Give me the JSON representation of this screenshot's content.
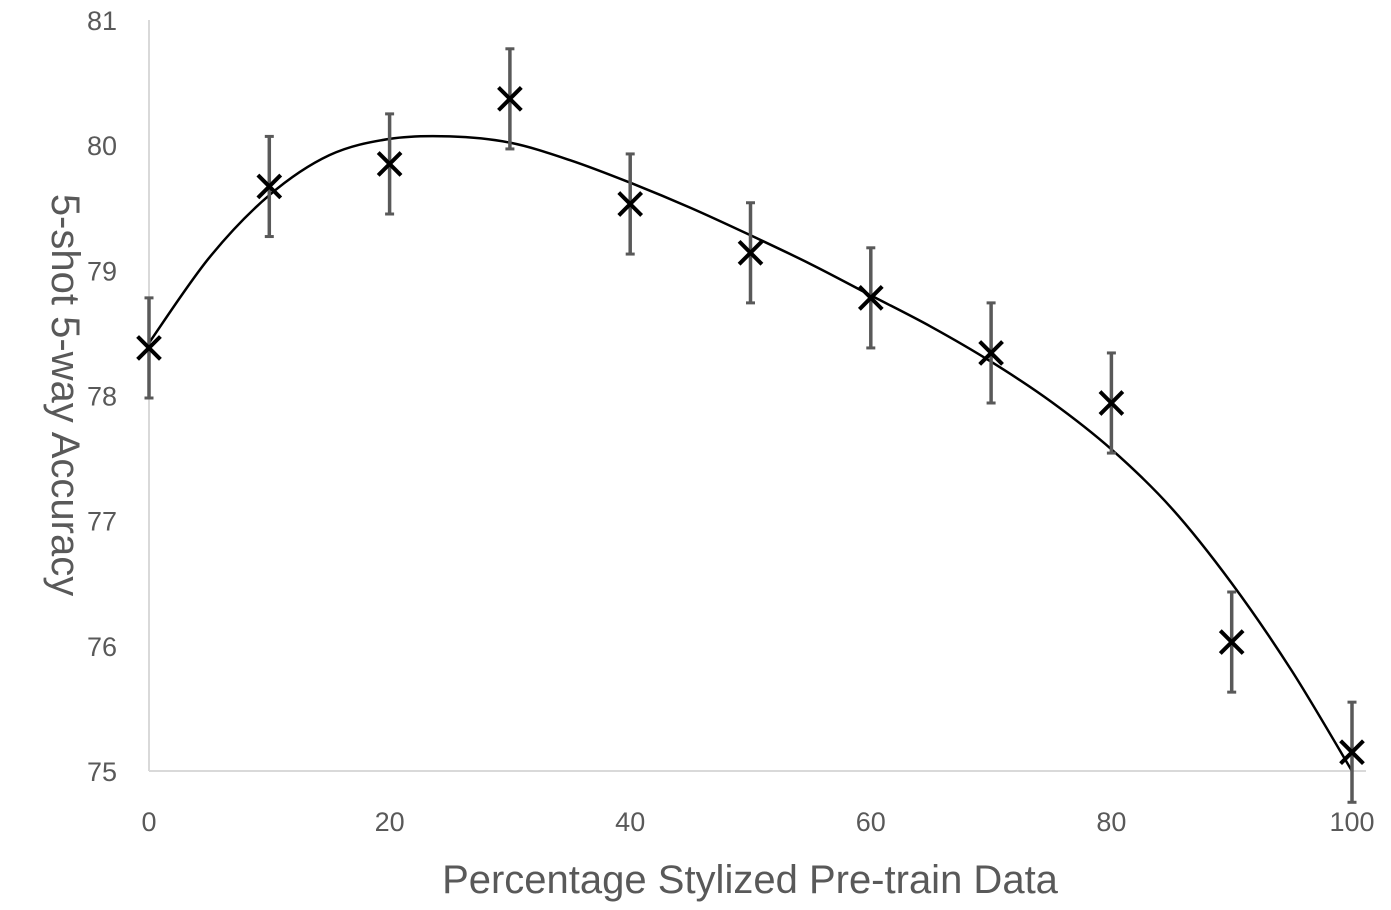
{
  "chart_data": {
    "type": "scatter",
    "title": "",
    "xlabel": "Percentage Stylized Pre-train Data",
    "ylabel": "5-shot 5-way Accuracy",
    "xlim": [
      0,
      100
    ],
    "ylim": [
      75,
      81
    ],
    "x_ticks": [
      "0",
      "20",
      "40",
      "60",
      "80",
      "100"
    ],
    "y_ticks": [
      "75",
      "76",
      "77",
      "78",
      "79",
      "80",
      "81"
    ],
    "grid": false,
    "legend": "none",
    "series": [
      {
        "marker": "x",
        "color": "#000000",
        "x": [
          0,
          10,
          20,
          30,
          40,
          50,
          60,
          70,
          80,
          90,
          100
        ],
        "y": [
          78.38,
          79.67,
          79.85,
          80.37,
          79.53,
          79.14,
          78.78,
          78.34,
          77.94,
          76.03,
          75.15
        ],
        "error": [
          0.4,
          0.4,
          0.4,
          0.4,
          0.4,
          0.4,
          0.4,
          0.4,
          0.4,
          0.4,
          0.4
        ]
      }
    ],
    "trendline": {
      "type": "polynomial",
      "color": "#000000",
      "points": [
        [
          0,
          78.42
        ],
        [
          5,
          79.1
        ],
        [
          10,
          79.6
        ],
        [
          15,
          79.92
        ],
        [
          20,
          80.05
        ],
        [
          25,
          80.07
        ],
        [
          30,
          80.02
        ],
        [
          35,
          79.88
        ],
        [
          40,
          79.7
        ],
        [
          45,
          79.5
        ],
        [
          50,
          79.28
        ],
        [
          55,
          79.05
        ],
        [
          60,
          78.8
        ],
        [
          65,
          78.55
        ],
        [
          70,
          78.27
        ],
        [
          75,
          77.95
        ],
        [
          80,
          77.57
        ],
        [
          85,
          77.1
        ],
        [
          90,
          76.5
        ],
        [
          95,
          75.8
        ],
        [
          100,
          75.0
        ]
      ]
    },
    "colors": {
      "axis": "#d9d9d9",
      "text": "#595959",
      "error_bar": "#595959",
      "marker": "#000000"
    }
  }
}
